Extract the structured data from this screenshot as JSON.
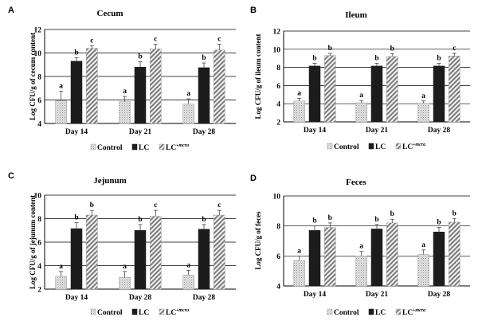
{
  "colors": {
    "lc": "#1c1c1c",
    "axis": "#000000",
    "grid": "#000000",
    "error": "#444444"
  },
  "chart_data": [
    {
      "type": "bar",
      "panel": "A",
      "title": "Cecum",
      "ylabel": "Log CFU/g of cecum content",
      "ylim": [
        4,
        12
      ],
      "yticks": [
        4,
        6,
        8,
        10,
        12
      ],
      "categories": [
        "Day 14",
        "Day 21",
        "Day 28"
      ],
      "series": [
        {
          "name": "Control",
          "values": [
            5.95,
            5.85,
            5.65
          ],
          "errors": [
            0.8,
            0.45,
            0.45
          ],
          "letters": [
            "a",
            "a",
            "a"
          ]
        },
        {
          "name": "LC",
          "values": [
            9.3,
            8.8,
            8.75
          ],
          "errors": [
            0.3,
            0.45,
            0.4
          ],
          "letters": [
            "b",
            "b",
            "b"
          ]
        },
        {
          "name": "LC+mcra",
          "values": [
            10.4,
            10.35,
            10.25
          ],
          "errors": [
            0.2,
            0.4,
            0.5
          ],
          "letters": [
            "c",
            "c",
            "c"
          ]
        }
      ],
      "legend": {
        "labels": [
          "Control",
          "LC",
          "LC"
        ],
        "superscript": "+mcra",
        "placement": "bottom"
      }
    },
    {
      "type": "bar",
      "panel": "B",
      "title": "Ileum",
      "ylabel": "Log CFU/g of ileum content",
      "ylim": [
        2,
        12
      ],
      "yticks": [
        2,
        4,
        6,
        8,
        10,
        12
      ],
      "categories": [
        "Day 14",
        "Day 21",
        "Day 28"
      ],
      "series": [
        {
          "name": "Control",
          "values": [
            4.3,
            4.1,
            4.05
          ],
          "errors": [
            0.3,
            0.25,
            0.25
          ],
          "letters": [
            "a",
            "a",
            "a"
          ]
        },
        {
          "name": "LC",
          "values": [
            8.15,
            8.15,
            8.15
          ],
          "errors": [
            0.3,
            0.3,
            0.3
          ],
          "letters": [
            "b",
            "b",
            "b"
          ]
        },
        {
          "name": "LC+mcra",
          "values": [
            9.3,
            9.2,
            9.25
          ],
          "errors": [
            0.25,
            0.3,
            0.3
          ],
          "letters": [
            "b",
            "b",
            "c"
          ]
        }
      ],
      "legend": {
        "labels": [
          "Control",
          "LC",
          "LC"
        ],
        "superscript": "+mcra",
        "placement": "bottom"
      }
    },
    {
      "type": "bar",
      "panel": "C",
      "title": "Jejunum",
      "ylabel": "Log CFU/g of jejunum content",
      "ylim": [
        2,
        10
      ],
      "yticks": [
        2,
        4,
        6,
        8,
        10
      ],
      "categories": [
        "Day 14",
        "Day 28",
        "Day 28"
      ],
      "series": [
        {
          "name": "Control",
          "values": [
            3.1,
            3.0,
            3.2
          ],
          "errors": [
            0.4,
            0.5,
            0.4
          ],
          "letters": [
            "a",
            "a",
            "a"
          ]
        },
        {
          "name": "LC",
          "values": [
            7.15,
            7.0,
            7.1
          ],
          "errors": [
            0.5,
            0.5,
            0.4
          ],
          "letters": [
            "b",
            "b",
            "b"
          ]
        },
        {
          "name": "LC+mcra",
          "values": [
            8.3,
            8.2,
            8.3
          ],
          "errors": [
            0.4,
            0.5,
            0.4
          ],
          "letters": [
            "b",
            "c",
            "c"
          ]
        }
      ],
      "legend": {
        "labels": [
          "Control",
          "LC",
          "LC"
        ],
        "superscript": "+mcra",
        "placement": "bottom"
      }
    },
    {
      "type": "bar",
      "panel": "D",
      "title": "Feces",
      "ylabel": "Log CFU/g of feces",
      "ylim": [
        4,
        10
      ],
      "yticks": [
        4,
        6,
        8,
        10
      ],
      "categories": [
        "Day 14",
        "Day 21",
        "Day 28"
      ],
      "series": [
        {
          "name": "Control",
          "values": [
            5.7,
            6.0,
            6.1
          ],
          "errors": [
            0.3,
            0.3,
            0.3
          ],
          "letters": [
            "a",
            "a",
            "a"
          ]
        },
        {
          "name": "LC",
          "values": [
            7.7,
            7.8,
            7.6
          ],
          "errors": [
            0.3,
            0.3,
            0.3
          ],
          "letters": [
            "b",
            "b",
            "b"
          ]
        },
        {
          "name": "LC+mcra",
          "values": [
            7.9,
            8.2,
            8.25
          ],
          "errors": [
            0.3,
            0.25,
            0.25
          ],
          "letters": [
            "b",
            "b",
            "b"
          ]
        }
      ],
      "legend": {
        "labels": [
          "Control",
          "LC",
          "LC"
        ],
        "superscript": "+mcra",
        "placement": "bottom"
      }
    }
  ]
}
